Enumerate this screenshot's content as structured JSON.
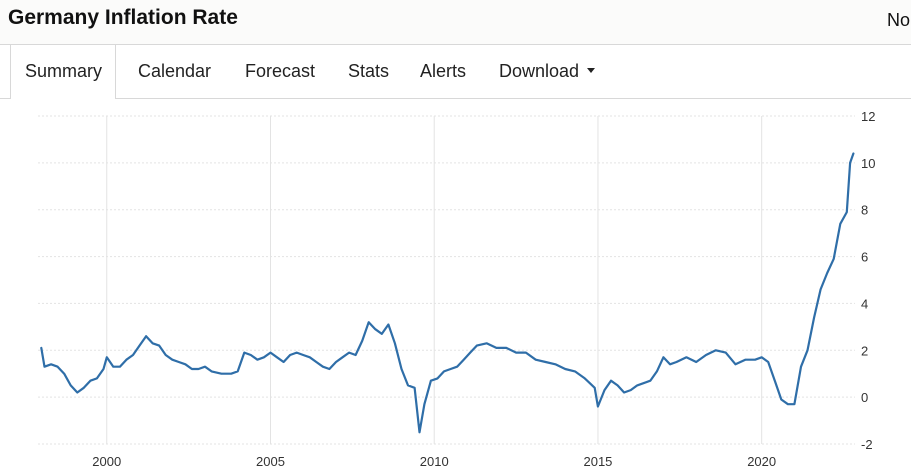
{
  "header": {
    "title": "Germany Inflation Rate",
    "right_text": "No"
  },
  "tabs": [
    {
      "label": "Summary",
      "active": true
    },
    {
      "label": "Calendar",
      "active": false
    },
    {
      "label": "Forecast",
      "active": false
    },
    {
      "label": "Stats",
      "active": false
    },
    {
      "label": "Alerts",
      "active": false
    },
    {
      "label": "Download",
      "active": false,
      "dropdown": true
    }
  ],
  "colors": {
    "line": "#2f6ea8",
    "grid": "#e3e3e3",
    "tick_text": "#333333"
  },
  "chart_data": {
    "type": "line",
    "title": "",
    "xlabel": "",
    "ylabel": "",
    "x_tick_labels": [
      "2000",
      "2005",
      "2010",
      "2015",
      "2020"
    ],
    "y_tick_labels": [
      "12",
      "10",
      "8",
      "6",
      "4",
      "2",
      "0",
      "-2"
    ],
    "xlim": [
      1997.9,
      2022.85
    ],
    "ylim": [
      -2,
      12
    ],
    "grid": true,
    "legend": "none",
    "series": [
      {
        "x": [
          1998.0,
          1998.1,
          1998.3,
          1998.5,
          1998.7,
          1998.9,
          1999.1,
          1999.3,
          1999.5,
          1999.7,
          1999.9,
          2000.0,
          2000.2,
          2000.4,
          2000.6,
          2000.8,
          2001.0,
          2001.2,
          2001.4,
          2001.6,
          2001.8,
          2002.0,
          2002.2,
          2002.4,
          2002.6,
          2002.8,
          2003.0,
          2003.2,
          2003.5,
          2003.8,
          2004.0,
          2004.2,
          2004.4,
          2004.6,
          2004.8,
          2005.0,
          2005.2,
          2005.4,
          2005.6,
          2005.8,
          2006.0,
          2006.2,
          2006.4,
          2006.6,
          2006.8,
          2007.0,
          2007.2,
          2007.4,
          2007.6,
          2007.8,
          2008.0,
          2008.2,
          2008.4,
          2008.6,
          2008.8,
          2009.0,
          2009.2,
          2009.4,
          2009.55,
          2009.7,
          2009.9,
          2010.1,
          2010.3,
          2010.5,
          2010.7,
          2010.9,
          2011.1,
          2011.3,
          2011.6,
          2011.9,
          2012.2,
          2012.5,
          2012.8,
          2013.1,
          2013.4,
          2013.7,
          2014.0,
          2014.3,
          2014.6,
          2014.9,
          2015.0,
          2015.2,
          2015.4,
          2015.6,
          2015.8,
          2016.0,
          2016.2,
          2016.4,
          2016.6,
          2016.8,
          2017.0,
          2017.2,
          2017.4,
          2017.7,
          2018.0,
          2018.3,
          2018.6,
          2018.9,
          2019.2,
          2019.5,
          2019.8,
          2020.0,
          2020.2,
          2020.4,
          2020.6,
          2020.8,
          2021.0,
          2021.2,
          2021.4,
          2021.6,
          2021.8,
          2022.0,
          2022.2,
          2022.4,
          2022.6,
          2022.7,
          2022.8
        ],
        "y": [
          2.1,
          1.3,
          1.4,
          1.3,
          1.0,
          0.5,
          0.2,
          0.4,
          0.7,
          0.8,
          1.2,
          1.7,
          1.3,
          1.3,
          1.6,
          1.8,
          2.2,
          2.6,
          2.3,
          2.2,
          1.8,
          1.6,
          1.5,
          1.4,
          1.2,
          1.2,
          1.3,
          1.1,
          1.0,
          1.0,
          1.1,
          1.9,
          1.8,
          1.6,
          1.7,
          1.9,
          1.7,
          1.5,
          1.8,
          1.9,
          1.8,
          1.7,
          1.5,
          1.3,
          1.2,
          1.5,
          1.7,
          1.9,
          1.8,
          2.4,
          3.2,
          2.9,
          2.7,
          3.1,
          2.3,
          1.2,
          0.5,
          0.4,
          -1.5,
          -0.3,
          0.7,
          0.8,
          1.1,
          1.2,
          1.3,
          1.6,
          1.9,
          2.2,
          2.3,
          2.1,
          2.1,
          1.9,
          1.9,
          1.6,
          1.5,
          1.4,
          1.2,
          1.1,
          0.8,
          0.4,
          -0.4,
          0.3,
          0.7,
          0.5,
          0.2,
          0.3,
          0.5,
          0.6,
          0.7,
          1.1,
          1.7,
          1.4,
          1.5,
          1.7,
          1.5,
          1.8,
          2.0,
          1.9,
          1.4,
          1.6,
          1.6,
          1.7,
          1.5,
          0.7,
          -0.1,
          -0.3,
          -0.3,
          1.3,
          2.0,
          3.4,
          4.6,
          5.3,
          5.9,
          7.4,
          7.9,
          10.0,
          10.4
        ]
      }
    ]
  }
}
